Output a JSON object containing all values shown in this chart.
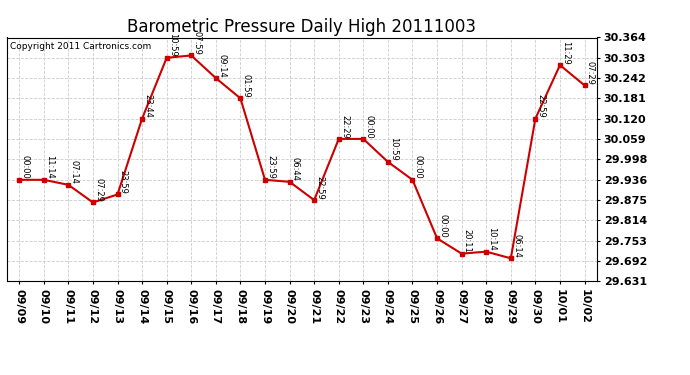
{
  "title": "Barometric Pressure Daily High 20111003",
  "copyright": "Copyright 2011 Cartronics.com",
  "x_labels": [
    "09/09",
    "09/10",
    "09/11",
    "09/12",
    "09/13",
    "09/14",
    "09/15",
    "09/16",
    "09/17",
    "09/18",
    "09/19",
    "09/20",
    "09/21",
    "09/22",
    "09/23",
    "09/24",
    "09/25",
    "09/26",
    "09/27",
    "09/28",
    "09/29",
    "09/30",
    "10/01",
    "10/02"
  ],
  "y_values": [
    29.936,
    29.936,
    29.921,
    29.868,
    29.892,
    30.12,
    30.303,
    30.31,
    30.242,
    30.181,
    29.936,
    29.93,
    29.875,
    30.059,
    30.059,
    29.99,
    29.936,
    29.76,
    29.714,
    29.72,
    29.7,
    30.12,
    30.281,
    30.22
  ],
  "time_labels": [
    "00:00",
    "11:14",
    "07:14",
    "07:29",
    "23:59",
    "23:44",
    "10:59",
    "07:59",
    "09:14",
    "01:59",
    "23:59",
    "06:44",
    "22:59",
    "22:29",
    "00:00",
    "10:59",
    "00:00",
    "00:00",
    "20:11",
    "10:14",
    "06:14",
    "22:59",
    "11:29",
    "07:29"
  ],
  "ylim_min": 29.631,
  "ylim_max": 30.364,
  "y_ticks": [
    29.631,
    29.692,
    29.753,
    29.814,
    29.875,
    29.936,
    29.998,
    30.059,
    30.12,
    30.181,
    30.242,
    30.303,
    30.364
  ],
  "line_color": "#cc0000",
  "marker_color": "#cc0000",
  "bg_color": "#ffffff",
  "grid_color": "#cccccc",
  "title_fontsize": 12,
  "label_fontsize": 8,
  "annot_fontsize": 6,
  "copyright_fontsize": 6.5
}
